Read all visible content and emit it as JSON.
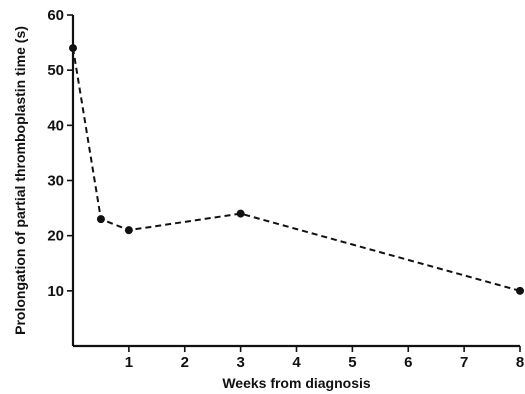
{
  "chart_data": {
    "type": "line",
    "xlabel": "Weeks from diagnosis",
    "ylabel": "Prolongation of partial thromboplastin time (s)",
    "xlim": [
      0,
      8
    ],
    "ylim": [
      0,
      60
    ],
    "x_ticks": [
      1,
      2,
      3,
      4,
      5,
      6,
      7,
      8
    ],
    "y_ticks": [
      10,
      20,
      30,
      40,
      50,
      60
    ],
    "grid": false,
    "line_style": "dashed",
    "series": [
      {
        "x": [
          0,
          0.5,
          1,
          3,
          8
        ],
        "y": [
          54,
          23,
          21,
          24,
          10
        ]
      }
    ]
  }
}
